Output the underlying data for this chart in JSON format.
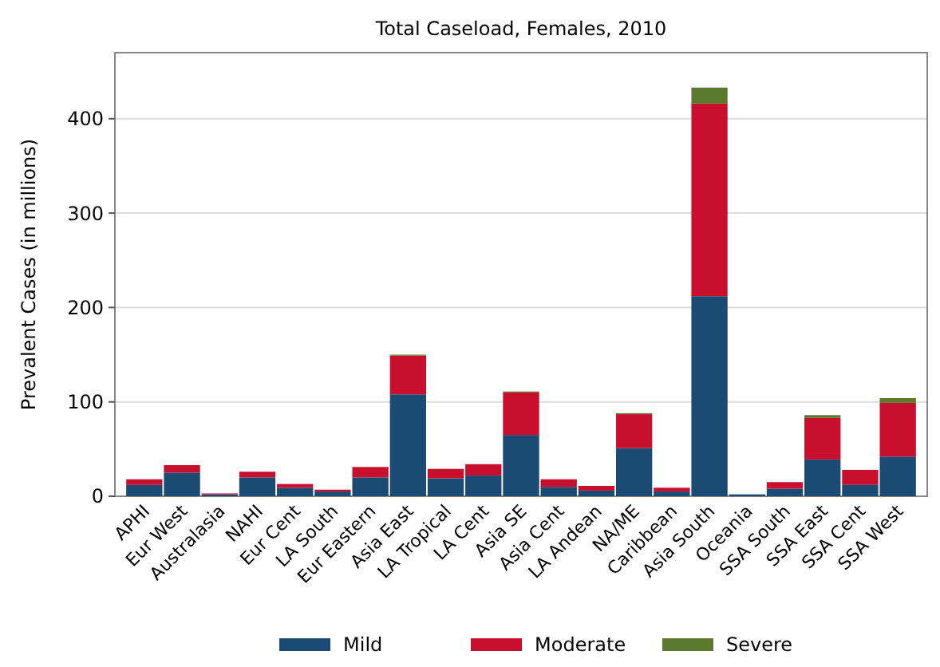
{
  "chart_data": {
    "type": "bar",
    "title": "Total Caseload, Females, 2010",
    "ylabel": "Prevalent Cases (in millions)",
    "stacked": true,
    "grid": "y",
    "legend": "bottom",
    "categories": [
      "APHI",
      "Eur West",
      "Australasia",
      "NAHI",
      "Eur Cent",
      "LA South",
      "Eur Eastern",
      "Asia East",
      "LA Tropical",
      "LA Cent",
      "Asia SE",
      "Asia Cent",
      "LA Andean",
      "NA/ME",
      "Caribbean",
      "Asia South",
      "Oceania",
      "SSA South",
      "SSA East",
      "SSA Cent",
      "SSA West"
    ],
    "ylim": [
      0,
      470
    ],
    "yticks": [
      0,
      100,
      200,
      300,
      400
    ],
    "series": [
      {
        "name": "Mild",
        "color": "#1b4a73",
        "values": [
          12,
          25,
          2,
          20,
          9,
          5,
          20,
          108,
          19,
          22,
          65,
          10,
          6,
          51,
          5,
          212,
          2,
          8,
          39,
          12,
          42
        ]
      },
      {
        "name": "Moderate",
        "color": "#c8102e",
        "values": [
          6,
          8,
          1,
          6,
          4,
          2,
          11,
          41,
          10,
          12,
          45,
          8,
          5,
          36,
          4,
          204,
          null,
          7,
          44,
          16,
          57
        ]
      },
      {
        "name": "Severe",
        "color": "#5b7a2e",
        "values": [
          0,
          0,
          0,
          0,
          0,
          0,
          0,
          1,
          0,
          0,
          1,
          0,
          0,
          1,
          0,
          17,
          0,
          0,
          3,
          0,
          5
        ]
      }
    ]
  }
}
